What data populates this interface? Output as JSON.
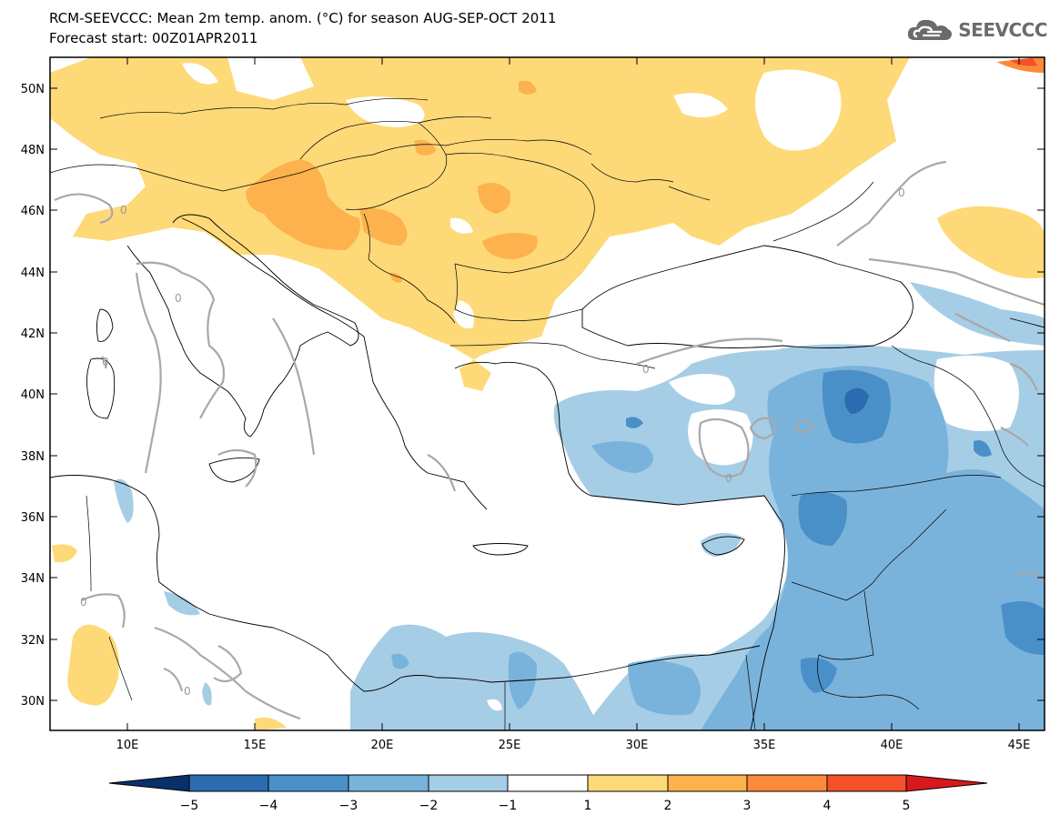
{
  "header": {
    "title": "RCM-SEEVCCC: Mean 2m temp. anom. (°C) for season AUG-SEP-OCT 2011",
    "subtitle": "Forecast start: 00Z01APR2011",
    "logo_text": "SEEVCCC",
    "logo_icon": "cloud-icon"
  },
  "map": {
    "lon_labels": [
      "10E",
      "15E",
      "20E",
      "25E",
      "30E",
      "35E",
      "40E",
      "45E"
    ],
    "lat_labels": [
      "50N",
      "48N",
      "46N",
      "44N",
      "42N",
      "40N",
      "38N",
      "36N",
      "34N",
      "32N",
      "30N"
    ],
    "contour_label": "0"
  },
  "colorbar": {
    "tick_labels": [
      "−5",
      "−4",
      "−3",
      "−2",
      "−1",
      "1",
      "2",
      "3",
      "4",
      "5"
    ],
    "colors": [
      "#08306b",
      "#2b6cb0",
      "#4a90c8",
      "#79b3dc",
      "#a6cde6",
      "#ffffff",
      "#fed978",
      "#fdb24d",
      "#fc8a3b",
      "#f4512b",
      "#d7191c"
    ]
  }
}
